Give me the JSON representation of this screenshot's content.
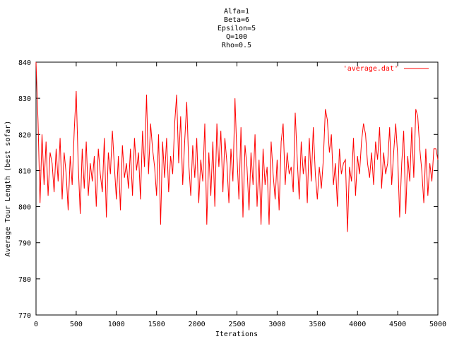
{
  "chart_data": {
    "type": "line",
    "title_lines": [
      "Alfa=1",
      "Beta=6",
      "Epsilon=5",
      "Q=100",
      "Rho=0.5"
    ],
    "xlabel": "Iterations",
    "ylabel": "Average Tour Length (best sofar)",
    "xlim": [
      0,
      5000
    ],
    "ylim": [
      770,
      840
    ],
    "x_ticks": [
      0,
      500,
      1000,
      1500,
      2000,
      2500,
      3000,
      3500,
      4000,
      4500,
      5000
    ],
    "y_ticks": [
      770,
      780,
      790,
      800,
      810,
      820,
      830,
      840
    ],
    "grid": false,
    "legend": "top-right",
    "series": [
      {
        "name": "'average.dat'",
        "color": "#ff0000",
        "x": [
          0,
          25,
          50,
          75,
          100,
          125,
          150,
          175,
          200,
          225,
          250,
          275,
          300,
          325,
          350,
          375,
          400,
          425,
          450,
          475,
          500,
          525,
          550,
          575,
          600,
          625,
          650,
          675,
          700,
          725,
          750,
          775,
          800,
          825,
          850,
          875,
          900,
          925,
          950,
          975,
          1000,
          1025,
          1050,
          1075,
          1100,
          1125,
          1150,
          1175,
          1200,
          1225,
          1250,
          1275,
          1300,
          1325,
          1350,
          1375,
          1400,
          1425,
          1450,
          1475,
          1500,
          1525,
          1550,
          1575,
          1600,
          1625,
          1650,
          1675,
          1700,
          1725,
          1750,
          1775,
          1800,
          1825,
          1850,
          1875,
          1900,
          1925,
          1950,
          1975,
          2000,
          2025,
          2050,
          2075,
          2100,
          2125,
          2150,
          2175,
          2200,
          2225,
          2250,
          2275,
          2300,
          2325,
          2350,
          2375,
          2400,
          2425,
          2450,
          2475,
          2500,
          2525,
          2550,
          2575,
          2600,
          2625,
          2650,
          2675,
          2700,
          2725,
          2750,
          2775,
          2800,
          2825,
          2850,
          2875,
          2900,
          2925,
          2950,
          2975,
          3000,
          3025,
          3050,
          3075,
          3100,
          3125,
          3150,
          3175,
          3200,
          3225,
          3250,
          3275,
          3300,
          3325,
          3350,
          3375,
          3400,
          3425,
          3450,
          3475,
          3500,
          3525,
          3550,
          3575,
          3600,
          3625,
          3650,
          3675,
          3700,
          3725,
          3750,
          3775,
          3800,
          3825,
          3850,
          3875,
          3900,
          3925,
          3950,
          3975,
          4000,
          4025,
          4050,
          4075,
          4100,
          4125,
          4150,
          4175,
          4200,
          4225,
          4250,
          4275,
          4300,
          4325,
          4350,
          4375,
          4400,
          4425,
          4450,
          4475,
          4500,
          4525,
          4550,
          4575,
          4600,
          4625,
          4650,
          4675,
          4700,
          4725,
          4750,
          4775,
          4800,
          4825,
          4850,
          4875,
          4900,
          4925,
          4950,
          4975,
          5000
        ],
        "y": [
          840,
          824,
          801,
          820,
          806,
          818,
          803,
          815,
          812,
          804,
          816,
          807,
          819,
          802,
          815,
          809,
          799,
          814,
          806,
          821,
          832,
          812,
          798,
          816,
          805,
          818,
          803,
          812,
          807,
          814,
          800,
          816,
          809,
          804,
          819,
          797,
          815,
          809,
          821,
          811,
          802,
          814,
          799,
          817,
          808,
          812,
          805,
          816,
          803,
          819,
          810,
          815,
          802,
          821,
          811,
          831,
          809,
          823,
          816,
          811,
          803,
          820,
          795,
          818,
          808,
          819,
          804,
          814,
          809,
          823,
          831,
          812,
          825,
          806,
          818,
          829,
          812,
          803,
          817,
          808,
          819,
          801,
          813,
          807,
          823,
          795,
          815,
          803,
          818,
          800,
          823,
          811,
          821,
          804,
          819,
          812,
          801,
          816,
          807,
          830,
          814,
          802,
          822,
          797,
          817,
          811,
          799,
          815,
          806,
          820,
          800,
          813,
          795,
          816,
          806,
          811,
          795,
          818,
          809,
          802,
          813,
          799,
          818,
          823,
          806,
          815,
          809,
          811,
          804,
          826,
          813,
          802,
          818,
          809,
          814,
          801,
          819,
          807,
          822,
          809,
          802,
          811,
          805,
          813,
          827,
          824,
          815,
          820,
          806,
          812,
          800,
          816,
          809,
          812,
          813,
          793,
          811,
          807,
          819,
          803,
          814,
          809,
          818,
          823,
          820,
          812,
          808,
          815,
          806,
          818,
          813,
          822,
          805,
          815,
          809,
          812,
          822,
          806,
          815,
          823,
          814,
          797,
          812,
          821,
          798,
          814,
          807,
          822,
          808,
          827,
          825,
          816,
          810,
          801,
          816,
          803,
          812,
          807,
          816,
          816,
          813
        ]
      }
    ]
  }
}
